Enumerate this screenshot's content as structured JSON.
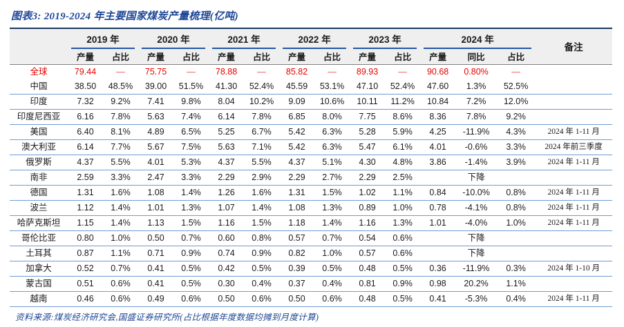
{
  "title": "图表3: 2019-2024 年主要国家煤炭产量梳理(亿吨)",
  "footer": "资料来源:煤炭经济研究会,国盛证券研究所(占比根据年度数据均摊到月度计算)",
  "colors": {
    "title_blue": "#1f4796",
    "highlight_red": "#e50000",
    "table_top_rule": "#17375e",
    "year_underline": "#2155a3",
    "row_rule_blue": "#6f9bd1",
    "header_bg": "#efefef"
  },
  "table": {
    "remark_header": "备注",
    "year_groups": [
      {
        "label": "2019 年",
        "cols": [
          "产量",
          "占比"
        ]
      },
      {
        "label": "2020 年",
        "cols": [
          "产量",
          "占比"
        ]
      },
      {
        "label": "2021 年",
        "cols": [
          "产量",
          "占比"
        ]
      },
      {
        "label": "2022 年",
        "cols": [
          "产量",
          "占比"
        ]
      },
      {
        "label": "2023 年",
        "cols": [
          "产量",
          "占比"
        ]
      },
      {
        "label": "2024 年",
        "cols": [
          "产量",
          "同比",
          "占比"
        ]
      }
    ],
    "rows": [
      {
        "name": "全球",
        "highlight": true,
        "cells": [
          "79.44",
          "—",
          "75.75",
          "—",
          "78.88",
          "—",
          "85.82",
          "—",
          "89.93",
          "—",
          "90.68",
          "0.80%",
          "—"
        ],
        "remark": ""
      },
      {
        "name": "中国",
        "cells": [
          "38.50",
          "48.5%",
          "39.00",
          "51.5%",
          "41.30",
          "52.4%",
          "45.59",
          "53.1%",
          "47.10",
          "52.4%",
          "47.60",
          "1.3%",
          "52.5%"
        ],
        "remark": ""
      },
      {
        "name": "印度",
        "cells": [
          "7.32",
          "9.2%",
          "7.41",
          "9.8%",
          "8.04",
          "10.2%",
          "9.09",
          "10.6%",
          "10.11",
          "11.2%",
          "10.84",
          "7.2%",
          "12.0%"
        ],
        "remark": ""
      },
      {
        "name": "印度尼西亚",
        "cells": [
          "6.16",
          "7.8%",
          "5.63",
          "7.4%",
          "6.14",
          "7.8%",
          "6.85",
          "8.0%",
          "7.75",
          "8.6%",
          "8.36",
          "7.8%",
          "9.2%"
        ],
        "remark": ""
      },
      {
        "name": "美国",
        "cells": [
          "6.40",
          "8.1%",
          "4.89",
          "6.5%",
          "5.25",
          "6.7%",
          "5.42",
          "6.3%",
          "5.28",
          "5.9%",
          "4.25",
          "-11.9%",
          "4.3%"
        ],
        "remark": "2024 年 1-11 月"
      },
      {
        "name": "澳大利亚",
        "cells": [
          "6.14",
          "7.7%",
          "5.67",
          "7.5%",
          "5.63",
          "7.1%",
          "5.42",
          "6.3%",
          "5.47",
          "6.1%",
          "4.01",
          "-0.6%",
          "3.3%"
        ],
        "remark": "2024 年前三季度"
      },
      {
        "name": "俄罗斯",
        "cells": [
          "4.37",
          "5.5%",
          "4.01",
          "5.3%",
          "4.37",
          "5.5%",
          "4.37",
          "5.1%",
          "4.30",
          "4.8%",
          "3.86",
          "-1.4%",
          "3.9%"
        ],
        "remark": "2024 年 1-11 月"
      },
      {
        "name": "南非",
        "cells": [
          "2.59",
          "3.3%",
          "2.47",
          "3.3%",
          "2.29",
          "2.9%",
          "2.29",
          "2.7%",
          "2.29",
          "2.5%",
          "",
          "下降",
          ""
        ],
        "remark": ""
      },
      {
        "name": "德国",
        "cells": [
          "1.31",
          "1.6%",
          "1.08",
          "1.4%",
          "1.26",
          "1.6%",
          "1.31",
          "1.5%",
          "1.02",
          "1.1%",
          "0.84",
          "-10.0%",
          "0.8%"
        ],
        "remark": "2024 年 1-11 月"
      },
      {
        "name": "波兰",
        "cells": [
          "1.12",
          "1.4%",
          "1.01",
          "1.3%",
          "1.07",
          "1.4%",
          "1.08",
          "1.3%",
          "0.89",
          "1.0%",
          "0.78",
          "-4.1%",
          "0.8%"
        ],
        "remark": "2024 年 1-11 月"
      },
      {
        "name": "哈萨克斯坦",
        "cells": [
          "1.15",
          "1.4%",
          "1.13",
          "1.5%",
          "1.16",
          "1.5%",
          "1.18",
          "1.4%",
          "1.16",
          "1.3%",
          "1.01",
          "-4.0%",
          "1.0%"
        ],
        "remark": "2024 年 1-11 月"
      },
      {
        "name": "哥伦比亚",
        "cells": [
          "0.80",
          "1.0%",
          "0.50",
          "0.7%",
          "0.60",
          "0.8%",
          "0.57",
          "0.7%",
          "0.54",
          "0.6%",
          "",
          "下降",
          ""
        ],
        "remark": ""
      },
      {
        "name": "土耳其",
        "cells": [
          "0.87",
          "1.1%",
          "0.71",
          "0.9%",
          "0.74",
          "0.9%",
          "0.82",
          "1.0%",
          "0.57",
          "0.6%",
          "",
          "下降",
          ""
        ],
        "remark": ""
      },
      {
        "name": "加拿大",
        "cells": [
          "0.52",
          "0.7%",
          "0.41",
          "0.5%",
          "0.42",
          "0.5%",
          "0.39",
          "0.5%",
          "0.48",
          "0.5%",
          "0.36",
          "-11.9%",
          "0.3%"
        ],
        "remark": "2024 年 1-10 月"
      },
      {
        "name": "蒙古国",
        "cells": [
          "0.51",
          "0.6%",
          "0.41",
          "0.5%",
          "0.30",
          "0.4%",
          "0.37",
          "0.4%",
          "0.81",
          "0.9%",
          "0.98",
          "20.2%",
          "1.1%"
        ],
        "remark": ""
      },
      {
        "name": "越南",
        "cells": [
          "0.46",
          "0.6%",
          "0.49",
          "0.6%",
          "0.50",
          "0.6%",
          "0.50",
          "0.6%",
          "0.48",
          "0.5%",
          "0.41",
          "-5.3%",
          "0.4%"
        ],
        "remark": "2024 年 1-11 月"
      }
    ]
  }
}
